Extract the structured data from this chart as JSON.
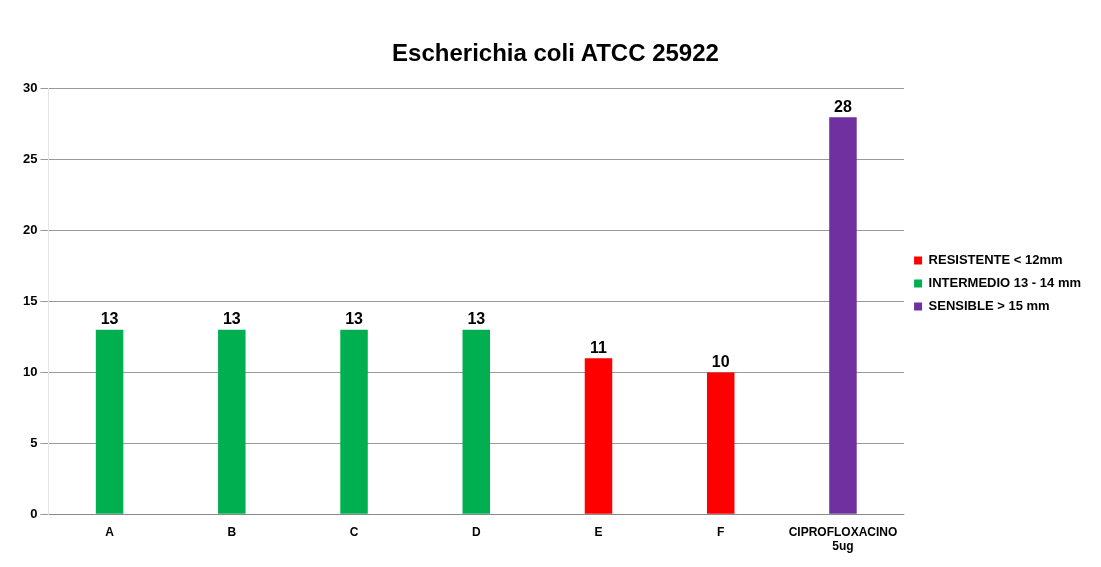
{
  "chart_data": {
    "type": "bar",
    "title": "Escherichia coli ATCC 25922",
    "categories": [
      "A",
      "B",
      "C",
      "D",
      "E",
      "F",
      "CIPROFLOXACINO 5ug"
    ],
    "series": [
      {
        "name": "RESISTENTE < 12mm",
        "color": "#ff0000",
        "values": [
          null,
          null,
          null,
          null,
          11,
          10,
          null
        ]
      },
      {
        "name": "INTERMEDIO 13 - 14 mm",
        "color": "#00b050",
        "values": [
          13,
          13,
          13,
          13,
          null,
          null,
          null
        ]
      },
      {
        "name": "SENSIBLE > 15 mm",
        "color": "#7030a0",
        "values": [
          null,
          null,
          null,
          null,
          null,
          null,
          28
        ]
      }
    ],
    "ylim": [
      0,
      30
    ],
    "yticks": [
      0,
      5,
      10,
      15,
      20,
      25,
      30
    ],
    "grid": "y",
    "legend": "right",
    "data_labels": true
  }
}
